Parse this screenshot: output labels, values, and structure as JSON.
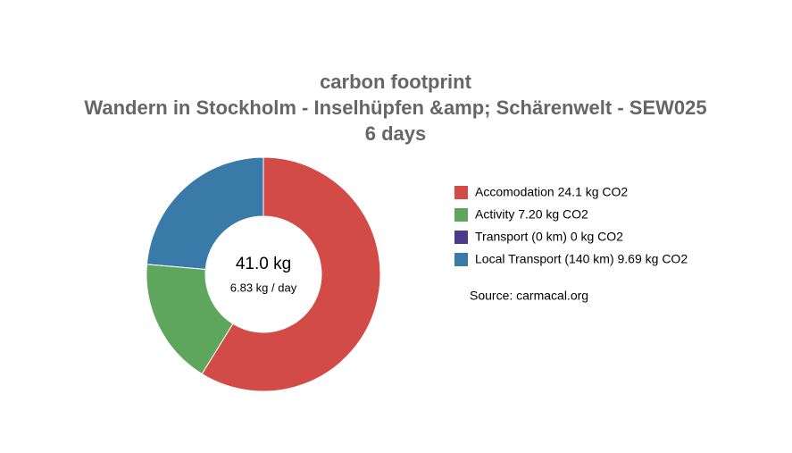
{
  "chart_data": {
    "type": "pie",
    "donut": true,
    "title": [
      "carbon footprint",
      "Wandern in Stockholm - Inselhüpfen &amp; Schärenwelt - SEW025",
      "6 days"
    ],
    "categories": [
      "Accomodation 24.1 kg CO2",
      "Activity 7.20 kg CO2",
      "Transport (0 km) 0 kg CO2",
      "Local Transport (140 km) 9.69 kg CO2"
    ],
    "values": [
      24.1,
      7.2,
      0,
      9.69
    ],
    "colors": [
      "#d24b47",
      "#5ea65c",
      "#4a3a8a",
      "#3a7aa8"
    ],
    "center_label": [
      "41.0 kg",
      "6.83 kg / day"
    ],
    "source": "Source: carmacal.org",
    "legend": "right"
  }
}
